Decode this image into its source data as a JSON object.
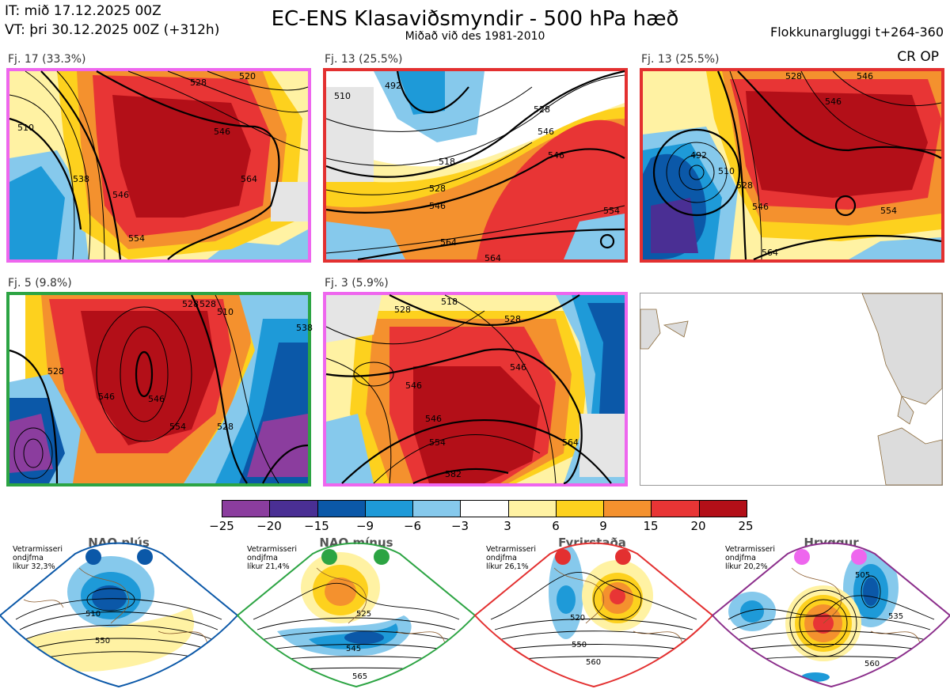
{
  "header": {
    "it_line": "IT: mið 17.12.2025 00Z",
    "vt_line": "VT: þri 30.12.2025 00Z  (+312h)",
    "title": "EC-ENS Klasaviðsmyndir - 500 hPa hæð",
    "subtitle": "Miðað við des 1981-2010",
    "window": "Flokkunargluggi t+264-360"
  },
  "cr_op_label": "CR OP",
  "clusters": [
    {
      "label": "Fj. 17 (33.3%)",
      "border_color": "#ee66ee",
      "contours": [
        "510",
        "520",
        "528",
        "538",
        "546",
        "546",
        "554",
        "564"
      ]
    },
    {
      "label": "Fj. 13 (25.5%)",
      "border_color": "#e33030",
      "contours": [
        "492",
        "510",
        "518",
        "528",
        "528",
        "546",
        "546",
        "546",
        "554",
        "564",
        "564"
      ]
    },
    {
      "label": "Fj. 13 (25.5%)",
      "border_color": "#e33030",
      "contours": [
        "492",
        "510",
        "528",
        "528",
        "546",
        "546",
        "546",
        "554",
        "564"
      ]
    },
    {
      "label": "Fj. 5 (9.8%)",
      "border_color": "#2ca443",
      "contours": [
        "528",
        "528",
        "528",
        "528",
        "538",
        "546",
        "546",
        "554",
        "510"
      ]
    },
    {
      "label": "Fj. 3 (5.9%)",
      "border_color": "#ee66ee",
      "contours": [
        "528",
        "518",
        "528",
        "546",
        "546",
        "546",
        "554",
        "564",
        "582"
      ]
    }
  ],
  "colorbar": {
    "ticks": [
      "−25",
      "−20",
      "−15",
      "−9",
      "−6",
      "−3",
      "3",
      "6",
      "9",
      "15",
      "20",
      "25"
    ],
    "colors": [
      "#8b3d9e",
      "#4a2f94",
      "#0b58a8",
      "#1e9ad8",
      "#86c9ec",
      "#ffffff",
      "#fff2a3",
      "#fdd11e",
      "#f4912e",
      "#e83535",
      "#b30f18"
    ]
  },
  "regimes": [
    {
      "title": "NAO plús",
      "note": [
        "Vetrarmisseri",
        "ondjfma",
        "líkur 32,3%"
      ],
      "color": "#0b58a8",
      "contours": [
        "510",
        "550"
      ]
    },
    {
      "title": "NAO mínus",
      "note": [
        "Vetrarmisseri",
        "ondjfma",
        "líkur 21,4%"
      ],
      "color": "#2ca443",
      "contours": [
        "525",
        "545",
        "565"
      ]
    },
    {
      "title": "Fyrirstaða",
      "note": [
        "Vetrarmisseri",
        "ondjfma",
        "líkur 26,1%"
      ],
      "color": "#e33030",
      "contours": [
        "520",
        "550",
        "560"
      ]
    },
    {
      "title": "Hryggur",
      "note": [
        "Vetrarmisseri",
        "ondjfma",
        "líkur 20,2%"
      ],
      "color": "#ee66ee",
      "contours": [
        "505",
        "535",
        "560"
      ]
    }
  ]
}
